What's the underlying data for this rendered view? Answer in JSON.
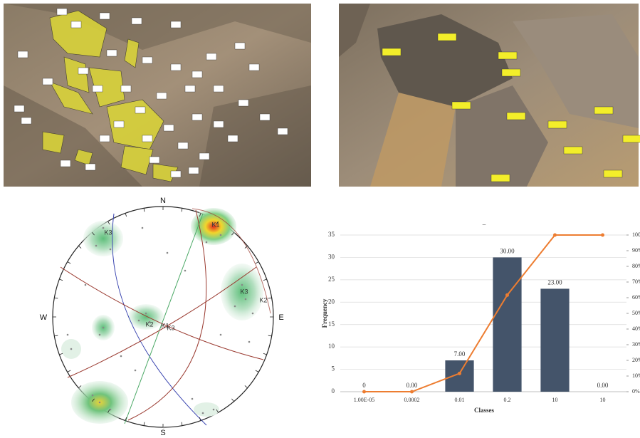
{
  "stereonet": {
    "directions": [
      "N",
      "E",
      "S",
      "W"
    ],
    "set_labels": [
      "K3",
      "K1",
      "K2",
      "K1",
      "K3",
      "K2",
      "K3"
    ]
  },
  "chart_data": {
    "type": "bar",
    "title": "–",
    "x_label": "Classes",
    "y_label": "Frequency",
    "categories": [
      "1.00E-05",
      "0.0002",
      "0.01",
      "0.2",
      "10",
      "10"
    ],
    "series": [
      {
        "color": "#44546a",
        "values": [
          0,
          0,
          7,
          30,
          23,
          0
        ],
        "value_labels": [
          "0",
          "0.00",
          "7.00",
          "30.00",
          "23.00",
          "0.00"
        ]
      },
      {
        "color": "#ed7d31",
        "values": [
          0,
          0,
          11.67,
          61.67,
          100,
          100
        ],
        "axis": "y2"
      }
    ],
    "ylim": [
      0,
      35
    ],
    "yticks": [
      0,
      5,
      10,
      15,
      20,
      25,
      30,
      35
    ],
    "y2lim": [
      0,
      100
    ],
    "y2ticks": [
      {
        "value": 0,
        "label": "0%"
      },
      {
        "value": 10,
        "label": "10%"
      },
      {
        "value": 20,
        "label": "20%"
      },
      {
        "value": 30,
        "label": "30%"
      },
      {
        "value": 40,
        "label": "40%"
      },
      {
        "value": 50,
        "label": "50%"
      },
      {
        "value": 60,
        "label": "60%"
      },
      {
        "value": 70,
        "label": "70%"
      },
      {
        "value": 80,
        "label": "80%"
      },
      {
        "value": 90,
        "label": "90%"
      },
      {
        "value": 100,
        "label": "100%"
      }
    ],
    "grid": true
  }
}
